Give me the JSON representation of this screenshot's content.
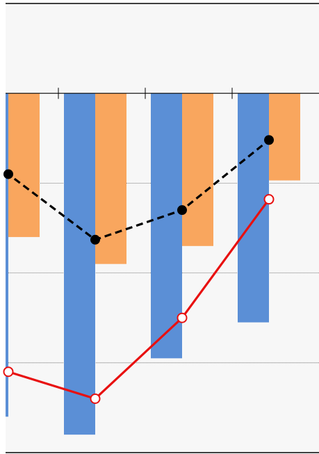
{
  "chart_data": {
    "type": "bar",
    "categories": [
      "",
      "",
      "",
      ""
    ],
    "series": [
      {
        "kind": "bar",
        "values": [
          -3.6,
          -3.8,
          -2.95,
          -2.55
        ],
        "color": "#5B8FD6"
      },
      {
        "kind": "bar",
        "values": [
          -1.6,
          -1.9,
          -1.7,
          -0.97
        ],
        "color": "#F9A65E"
      },
      {
        "kind": "line",
        "values": [
          -0.9,
          -1.63,
          -1.3,
          -0.52
        ],
        "color": "#000000",
        "dashed": true,
        "marker": "filled-circle"
      },
      {
        "kind": "line",
        "values": [
          -3.1,
          -3.4,
          -2.5,
          -1.18
        ],
        "color": "#E81010",
        "dashed": false,
        "marker": "open-circle"
      }
    ],
    "ylim": [
      -4.0,
      1.0
    ],
    "grid": true,
    "legend": "none",
    "title": "",
    "xlabel": "",
    "ylabel": ""
  }
}
